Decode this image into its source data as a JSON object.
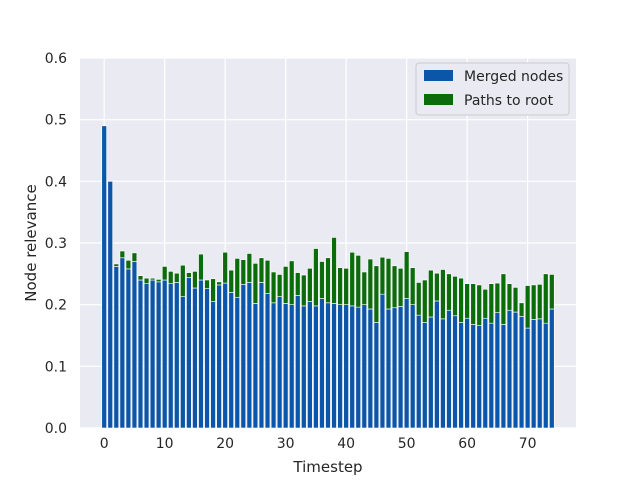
{
  "chart_data": {
    "type": "bar",
    "stacked": true,
    "xlabel": "Timestep",
    "ylabel": "Node relevance",
    "xlim": [
      -4,
      78
    ],
    "ylim": [
      0,
      0.6
    ],
    "xticks": [
      0,
      10,
      20,
      30,
      40,
      50,
      60,
      70
    ],
    "yticks": [
      "0.0",
      "0.1",
      "0.2",
      "0.3",
      "0.4",
      "0.5",
      "0.6"
    ],
    "grid": true,
    "background": "#eaeaf2",
    "legend_position": "top-right",
    "series": [
      {
        "name": "Merged nodes",
        "color": "#0b56a8",
        "values": [
          0.49,
          0.4,
          0.262,
          0.276,
          0.258,
          0.27,
          0.24,
          0.234,
          0.24,
          0.237,
          0.24,
          0.234,
          0.236,
          0.213,
          0.244,
          0.227,
          0.24,
          0.226,
          0.205,
          0.232,
          0.235,
          0.22,
          0.212,
          0.233,
          0.236,
          0.202,
          0.236,
          0.218,
          0.203,
          0.213,
          0.202,
          0.2,
          0.215,
          0.198,
          0.205,
          0.198,
          0.21,
          0.203,
          0.202,
          0.2,
          0.2,
          0.198,
          0.196,
          0.2,
          0.193,
          0.171,
          0.217,
          0.193,
          0.195,
          0.197,
          0.21,
          0.2,
          0.183,
          0.171,
          0.18,
          0.206,
          0.177,
          0.191,
          0.182,
          0.171,
          0.178,
          0.168,
          0.166,
          0.178,
          0.17,
          0.187,
          0.168,
          0.191,
          0.188,
          0.181,
          0.162,
          0.176,
          0.177,
          0.17,
          0.193
        ]
      },
      {
        "name": "Paths to root",
        "color": "#0c6b0b",
        "values": [
          0,
          0,
          0.004,
          0.011,
          0.014,
          0.014,
          0.007,
          0.009,
          0.003,
          0.004,
          0.022,
          0.02,
          0.015,
          0.051,
          0.008,
          0.027,
          0.042,
          0.014,
          0.037,
          0.005,
          0.05,
          0.036,
          0.063,
          0.04,
          0.047,
          0.065,
          0.04,
          0.054,
          0.05,
          0.036,
          0.06,
          0.071,
          0.037,
          0.05,
          0.054,
          0.093,
          0.06,
          0.073,
          0.107,
          0.06,
          0.059,
          0.087,
          0.084,
          0.053,
          0.081,
          0.092,
          0.06,
          0.082,
          0.068,
          0.062,
          0.076,
          0.06,
          0.053,
          0.069,
          0.076,
          0.045,
          0.08,
          0.059,
          0.064,
          0.072,
          0.056,
          0.066,
          0.066,
          0.047,
          0.064,
          0.048,
          0.082,
          0.043,
          0.04,
          0.022,
          0.069,
          0.056,
          0.056,
          0.08,
          0.056
        ]
      }
    ],
    "x": [
      0,
      1,
      2,
      3,
      4,
      5,
      6,
      7,
      8,
      9,
      10,
      11,
      12,
      13,
      14,
      15,
      16,
      17,
      18,
      19,
      20,
      21,
      22,
      23,
      24,
      25,
      26,
      27,
      28,
      29,
      30,
      31,
      32,
      33,
      34,
      35,
      36,
      37,
      38,
      39,
      40,
      41,
      42,
      43,
      44,
      45,
      46,
      47,
      48,
      49,
      50,
      51,
      52,
      53,
      54,
      55,
      56,
      57,
      58,
      59,
      60,
      61,
      62,
      63,
      64,
      65,
      66,
      67,
      68,
      69,
      70,
      71,
      72,
      73,
      74
    ]
  }
}
